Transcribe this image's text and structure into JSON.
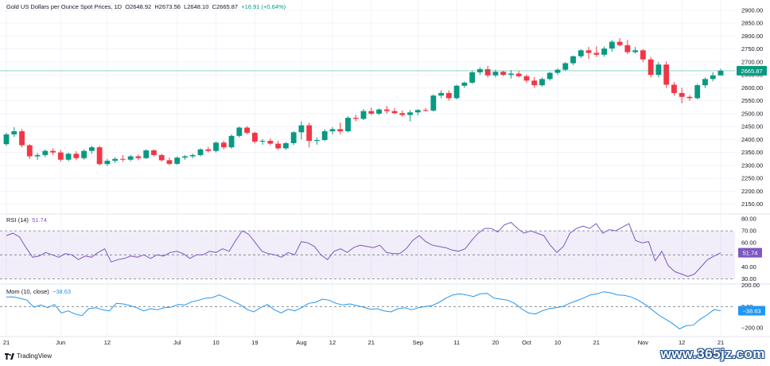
{
  "header": {
    "symbol": "Gold US Dollars per Ounce Spot Prices, 1D",
    "open_label": "O",
    "open": "2648.92",
    "high_label": "H",
    "high": "2673.56",
    "low_label": "L",
    "low": "2648.10",
    "close_label": "C",
    "close": "2665.87",
    "change": "+16.91 (+0.64%)"
  },
  "rsi_legend": {
    "label": "RSI (14)",
    "value": "51.74"
  },
  "mom_legend": {
    "label": "Mom (10, close)",
    "value": "−38.63"
  },
  "brand": {
    "name": "TradingView"
  },
  "watermark": {
    "text": "www.365jz.com"
  },
  "colors": {
    "up": "#089981",
    "down": "#f23645",
    "rsi": "#7e57c2",
    "mom": "#2196f3",
    "grid": "#f0f3fa"
  },
  "chart_data": [
    {
      "type": "candlestick",
      "title": "Gold US Dollars per Ounce Spot Prices, 1D",
      "x_ticks": [
        "21",
        "Jun",
        "12",
        "Jul",
        "10",
        "19",
        "Aug",
        "12",
        "21",
        "Sep",
        "11",
        "20",
        "Oct",
        "10",
        "21",
        "Nov",
        "12",
        "21"
      ],
      "y_ticks": [
        2150,
        2200,
        2250,
        2300,
        2350,
        2400,
        2450,
        2500,
        2550,
        2600,
        2650,
        2700,
        2750,
        2800,
        2850,
        2900
      ],
      "ylim": [
        2115,
        2915
      ],
      "last_price_label": "2665.87",
      "series": [
        {
          "ohlc": [
            [
              2382,
              2426,
              2376,
              2420
            ],
            [
              2420,
              2448,
              2410,
              2432
            ],
            [
              2432,
              2440,
              2370,
              2378
            ],
            [
              2378,
              2382,
              2325,
              2335
            ],
            [
              2335,
              2348,
              2322,
              2340
            ],
            [
              2340,
              2362,
              2332,
              2356
            ],
            [
              2356,
              2366,
              2340,
              2350
            ],
            [
              2350,
              2360,
              2315,
              2322
            ],
            [
              2322,
              2350,
              2316,
              2345
            ],
            [
              2345,
              2355,
              2320,
              2328
            ],
            [
              2328,
              2362,
              2322,
              2356
            ],
            [
              2356,
              2376,
              2345,
              2370
            ],
            [
              2370,
              2376,
              2300,
              2305
            ],
            [
              2305,
              2325,
              2298,
              2318
            ],
            [
              2318,
              2332,
              2310,
              2325
            ],
            [
              2325,
              2340,
              2315,
              2322
            ],
            [
              2322,
              2340,
              2316,
              2335
            ],
            [
              2335,
              2342,
              2320,
              2328
            ],
            [
              2328,
              2362,
              2325,
              2358
            ],
            [
              2358,
              2362,
              2335,
              2340
            ],
            [
              2340,
              2345,
              2315,
              2320
            ],
            [
              2320,
              2330,
              2300,
              2306
            ],
            [
              2306,
              2335,
              2302,
              2330
            ],
            [
              2330,
              2340,
              2322,
              2335
            ],
            [
              2335,
              2345,
              2328,
              2340
            ],
            [
              2340,
              2366,
              2335,
              2362
            ],
            [
              2362,
              2372,
              2350,
              2356
            ],
            [
              2356,
              2392,
              2350,
              2388
            ],
            [
              2388,
              2395,
              2362,
              2370
            ],
            [
              2370,
              2420,
              2365,
              2414
            ],
            [
              2414,
              2450,
              2408,
              2446
            ],
            [
              2446,
              2452,
              2420,
              2426
            ],
            [
              2426,
              2430,
              2385,
              2392
            ],
            [
              2392,
              2402,
              2380,
              2395
            ],
            [
              2395,
              2404,
              2378,
              2384
            ],
            [
              2384,
              2395,
              2360,
              2366
            ],
            [
              2366,
              2390,
              2360,
              2386
            ],
            [
              2386,
              2432,
              2378,
              2428
            ],
            [
              2428,
              2470,
              2400,
              2455
            ],
            [
              2455,
              2465,
              2370,
              2395
            ],
            [
              2395,
              2408,
              2380,
              2398
            ],
            [
              2398,
              2440,
              2394,
              2432
            ],
            [
              2432,
              2448,
              2420,
              2440
            ],
            [
              2440,
              2466,
              2420,
              2432
            ],
            [
              2432,
              2490,
              2428,
              2484
            ],
            [
              2484,
              2496,
              2470,
              2480
            ],
            [
              2480,
              2518,
              2475,
              2510
            ],
            [
              2510,
              2524,
              2495,
              2500
            ],
            [
              2500,
              2520,
              2495,
              2516
            ],
            [
              2516,
              2530,
              2500,
              2510
            ],
            [
              2510,
              2522,
              2498,
              2502
            ],
            [
              2502,
              2512,
              2488,
              2495
            ],
            [
              2495,
              2514,
              2470,
              2505
            ],
            [
              2505,
              2518,
              2494,
              2514
            ],
            [
              2514,
              2522,
              2508,
              2512
            ],
            [
              2512,
              2575,
              2508,
              2570
            ],
            [
              2570,
              2590,
              2560,
              2580
            ],
            [
              2580,
              2590,
              2550,
              2560
            ],
            [
              2560,
              2612,
              2555,
              2608
            ],
            [
              2608,
              2625,
              2600,
              2620
            ],
            [
              2620,
              2665,
              2615,
              2660
            ],
            [
              2660,
              2680,
              2650,
              2672
            ],
            [
              2672,
              2685,
              2640,
              2648
            ],
            [
              2648,
              2670,
              2640,
              2662
            ],
            [
              2662,
              2666,
              2645,
              2650
            ],
            [
              2650,
              2668,
              2636,
              2655
            ],
            [
              2655,
              2665,
              2640,
              2645
            ],
            [
              2645,
              2652,
              2620,
              2628
            ],
            [
              2628,
              2642,
              2600,
              2610
            ],
            [
              2610,
              2640,
              2605,
              2634
            ],
            [
              2634,
              2662,
              2628,
              2658
            ],
            [
              2658,
              2675,
              2650,
              2670
            ],
            [
              2670,
              2700,
              2665,
              2695
            ],
            [
              2695,
              2725,
              2688,
              2722
            ],
            [
              2722,
              2750,
              2715,
              2745
            ],
            [
              2745,
              2758,
              2712,
              2735
            ],
            [
              2735,
              2760,
              2720,
              2728
            ],
            [
              2728,
              2760,
              2720,
              2752
            ],
            [
              2752,
              2785,
              2740,
              2778
            ],
            [
              2778,
              2792,
              2760,
              2765
            ],
            [
              2765,
              2785,
              2730,
              2738
            ],
            [
              2738,
              2758,
              2732,
              2745
            ],
            [
              2745,
              2750,
              2700,
              2710
            ],
            [
              2710,
              2720,
              2640,
              2650
            ],
            [
              2650,
              2700,
              2640,
              2690
            ],
            [
              2690,
              2702,
              2600,
              2612
            ],
            [
              2612,
              2622,
              2570,
              2580
            ],
            [
              2580,
              2600,
              2540,
              2565
            ],
            [
              2565,
              2572,
              2550,
              2560
            ],
            [
              2560,
              2615,
              2555,
              2610
            ],
            [
              2610,
              2640,
              2600,
              2634
            ],
            [
              2634,
              2660,
              2625,
              2648
            ],
            [
              2648,
              2674,
              2648,
              2666
            ]
          ]
        }
      ]
    },
    {
      "type": "line",
      "title": "RSI (14)",
      "y_ticks": [
        30,
        40,
        50,
        60,
        70,
        80
      ],
      "ylim": [
        27,
        82
      ],
      "bands": [
        70,
        50,
        30
      ],
      "last_value_label": "51.74",
      "series": [
        {
          "name": "RSI (14)",
          "values": [
            66,
            68,
            65,
            56,
            48,
            49,
            52,
            50,
            48,
            51,
            50,
            46,
            49,
            48,
            52,
            55,
            44,
            46,
            47,
            49,
            48,
            50,
            47,
            50,
            49,
            52,
            53,
            51,
            47,
            50,
            50,
            53,
            52,
            55,
            53,
            62,
            70,
            67,
            60,
            53,
            51,
            50,
            48,
            52,
            50,
            61,
            60,
            57,
            50,
            46,
            53,
            55,
            52,
            56,
            58,
            57,
            56,
            58,
            52,
            51,
            51,
            55,
            62,
            66,
            61,
            58,
            57,
            56,
            54,
            53,
            55,
            62,
            68,
            72,
            72,
            69,
            75,
            77,
            72,
            68,
            70,
            68,
            66,
            58,
            52,
            57,
            68,
            72,
            74,
            72,
            76,
            68,
            71,
            70,
            73,
            76,
            62,
            60,
            61,
            45,
            53,
            41,
            36,
            34,
            32,
            34,
            40,
            46,
            49,
            51.74
          ]
        }
      ]
    },
    {
      "type": "line",
      "title": "Mom (10, close)",
      "y_ticks": [
        200,
        0,
        -200
      ],
      "y_tick_labels": [
        "200.00",
        "0.00",
        "−200.00"
      ],
      "ylim": [
        -260,
        190
      ],
      "last_value_label": "−38.63",
      "series": [
        {
          "name": "Mom (10, close)",
          "values": [
            90,
            92,
            78,
            60,
            -5,
            15,
            -10,
            20,
            -60,
            -40,
            -70,
            -85,
            -20,
            -10,
            -30,
            -40,
            30,
            25,
            10,
            -10,
            -40,
            -20,
            -30,
            -10,
            -5,
            20,
            15,
            45,
            60,
            80,
            85,
            110,
            82,
            50,
            20,
            -25,
            -50,
            -10,
            20,
            -30,
            -60,
            -25,
            -40,
            -10,
            30,
            40,
            70,
            60,
            30,
            15,
            25,
            10,
            -5,
            -25,
            -20,
            -40,
            -50,
            -20,
            -10,
            -30,
            -10,
            0,
            10,
            40,
            80,
            110,
            120,
            110,
            95,
            120,
            125,
            80,
            70,
            60,
            30,
            -20,
            -60,
            -70,
            -40,
            -20,
            -10,
            0,
            30,
            55,
            80,
            110,
            120,
            140,
            130,
            110,
            105,
            90,
            60,
            20,
            -30,
            -80,
            -120,
            -160,
            -210,
            -180,
            -175,
            -120,
            -80,
            -30,
            -38.63
          ]
        }
      ]
    }
  ]
}
